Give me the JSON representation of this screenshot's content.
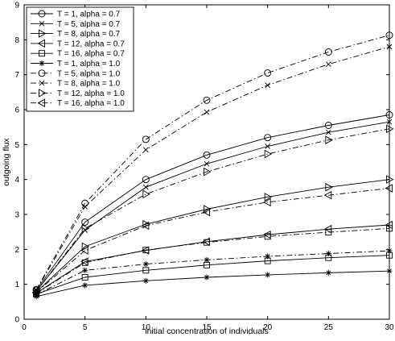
{
  "chart_data": {
    "type": "line",
    "title": "",
    "xlabel": "initial concentration of individuals",
    "ylabel": "outgoing flux",
    "xlim": [
      0,
      30
    ],
    "ylim": [
      0,
      9
    ],
    "xticks": [
      0,
      5,
      10,
      15,
      20,
      25,
      30
    ],
    "yticks": [
      0,
      1,
      2,
      3,
      4,
      5,
      6,
      7,
      8,
      9
    ],
    "grid": false,
    "legend_position": "top-left",
    "x": [
      1,
      5,
      10,
      15,
      20,
      25,
      30
    ],
    "series": [
      {
        "name": "T = 1, alpha = 0.7",
        "marker": "circle",
        "dash": "solid",
        "values": [
          0.83,
          2.78,
          4.0,
          4.7,
          5.2,
          5.55,
          5.85
        ]
      },
      {
        "name": "T = 5, alpha = 0.7",
        "marker": "x",
        "dash": "solid",
        "values": [
          0.8,
          2.55,
          3.78,
          4.45,
          4.95,
          5.35,
          5.65
        ]
      },
      {
        "name": "T = 8, alpha = 0.7",
        "marker": "triangle-right",
        "dash": "solid",
        "values": [
          0.78,
          2.08,
          2.72,
          3.15,
          3.5,
          3.78,
          4.0
        ]
      },
      {
        "name": "T = 12, alpha = 0.7",
        "marker": "triangle-left",
        "dash": "solid",
        "values": [
          0.75,
          1.65,
          1.97,
          2.22,
          2.42,
          2.58,
          2.7
        ]
      },
      {
        "name": "T = 16, alpha = 0.7",
        "marker": "square",
        "dash": "solid",
        "values": [
          0.72,
          1.2,
          1.4,
          1.55,
          1.67,
          1.76,
          1.83
        ]
      },
      {
        "name": "T = 1, alpha = 1.0",
        "marker": "asterisk",
        "dash": "solid",
        "values": [
          0.65,
          0.97,
          1.1,
          1.2,
          1.27,
          1.33,
          1.38
        ]
      },
      {
        "name": "T = 5, alpha = 1.0",
        "marker": "circle",
        "dash": "dashdot",
        "values": [
          0.85,
          3.32,
          5.15,
          6.27,
          7.05,
          7.65,
          8.13
        ]
      },
      {
        "name": "T = 8, alpha = 1.0",
        "marker": "x",
        "dash": "dashdot",
        "values": [
          0.83,
          3.22,
          4.85,
          5.93,
          6.7,
          7.3,
          7.8
        ]
      },
      {
        "name": "T = 12, alpha = 1.0",
        "marker": "triangle-right",
        "dash": "dashdot",
        "values": [
          0.8,
          2.6,
          3.58,
          4.22,
          4.73,
          5.13,
          5.45
        ]
      },
      {
        "name": "T = 16, alpha = 1.0",
        "marker": "triangle-left",
        "dash": "dashdot",
        "values": [
          0.77,
          1.97,
          2.68,
          3.07,
          3.35,
          3.55,
          3.75
        ]
      },
      {
        "name": "",
        "marker": "square",
        "dash": "dashdot",
        "values": [
          0.74,
          1.62,
          1.98,
          2.2,
          2.37,
          2.49,
          2.6
        ]
      },
      {
        "name": "",
        "marker": "asterisk",
        "dash": "dashdot",
        "values": [
          0.7,
          1.4,
          1.58,
          1.7,
          1.8,
          1.88,
          1.96
        ]
      }
    ]
  }
}
